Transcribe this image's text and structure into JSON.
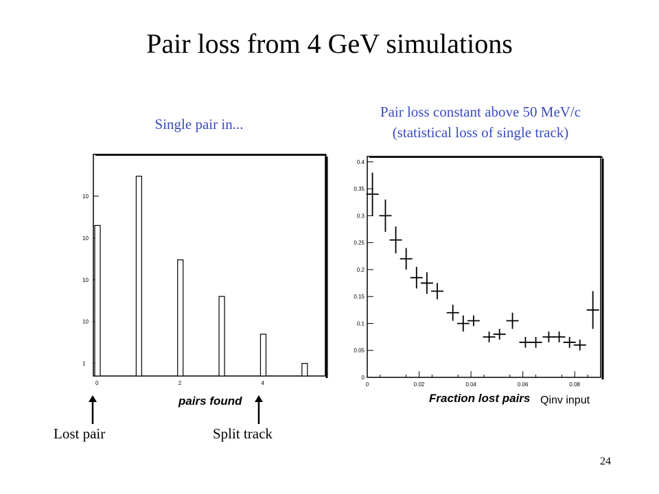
{
  "slide": {
    "title": "Pair loss from 4 GeV simulations",
    "caption_left": "Single pair in...",
    "caption_right_line1": "Pair loss constant above 50 MeV/c",
    "caption_right_line2": "(statistical loss of single track)",
    "label_lost_pair": "Lost pair",
    "label_split_track": "Split track",
    "page_number": "24",
    "caption_color": "#3a4bbf"
  },
  "chart_data": [
    {
      "type": "bar",
      "log_y": true,
      "xlabel": "pairs found",
      "x_tick_labels": [
        "0",
        "2",
        "4"
      ],
      "y_tick_labels": [
        "1",
        "10",
        "10",
        "10",
        "10"
      ],
      "categories": [
        0,
        1,
        2,
        3,
        4,
        5
      ],
      "values": [
        2000,
        30000,
        300,
        40,
        5,
        1
      ],
      "ylim": [
        0.5,
        100000
      ],
      "grid": false
    },
    {
      "type": "scatter",
      "error_bars": true,
      "xlabel": "Fraction lost pairs",
      "xlabel_overlap": "Qinv input",
      "x_tick_labels": [
        "0",
        "0.02",
        "0.04",
        "0.06",
        "0.08"
      ],
      "y_tick_labels": [
        "0",
        "0.05",
        "0.1",
        "0.15",
        "0.2",
        "0.25",
        "0.3",
        "0.35",
        "0.4"
      ],
      "xlim": [
        0,
        0.09
      ],
      "ylim": [
        0,
        0.41
      ],
      "points": [
        {
          "x": 0.002,
          "y": 0.34,
          "ey": 0.04
        },
        {
          "x": 0.007,
          "y": 0.3,
          "ey": 0.03
        },
        {
          "x": 0.011,
          "y": 0.255,
          "ey": 0.025
        },
        {
          "x": 0.015,
          "y": 0.22,
          "ey": 0.02
        },
        {
          "x": 0.019,
          "y": 0.185,
          "ey": 0.02
        },
        {
          "x": 0.023,
          "y": 0.175,
          "ey": 0.02
        },
        {
          "x": 0.027,
          "y": 0.16,
          "ey": 0.015
        },
        {
          "x": 0.033,
          "y": 0.12,
          "ey": 0.015
        },
        {
          "x": 0.037,
          "y": 0.1,
          "ey": 0.015
        },
        {
          "x": 0.041,
          "y": 0.105,
          "ey": 0.01
        },
        {
          "x": 0.047,
          "y": 0.075,
          "ey": 0.01
        },
        {
          "x": 0.051,
          "y": 0.08,
          "ey": 0.01
        },
        {
          "x": 0.056,
          "y": 0.105,
          "ey": 0.015
        },
        {
          "x": 0.061,
          "y": 0.065,
          "ey": 0.01
        },
        {
          "x": 0.065,
          "y": 0.065,
          "ey": 0.01
        },
        {
          "x": 0.07,
          "y": 0.075,
          "ey": 0.01
        },
        {
          "x": 0.074,
          "y": 0.075,
          "ey": 0.01
        },
        {
          "x": 0.078,
          "y": 0.065,
          "ey": 0.01
        },
        {
          "x": 0.082,
          "y": 0.06,
          "ey": 0.01
        },
        {
          "x": 0.087,
          "y": 0.125,
          "ey": 0.035
        }
      ]
    }
  ]
}
